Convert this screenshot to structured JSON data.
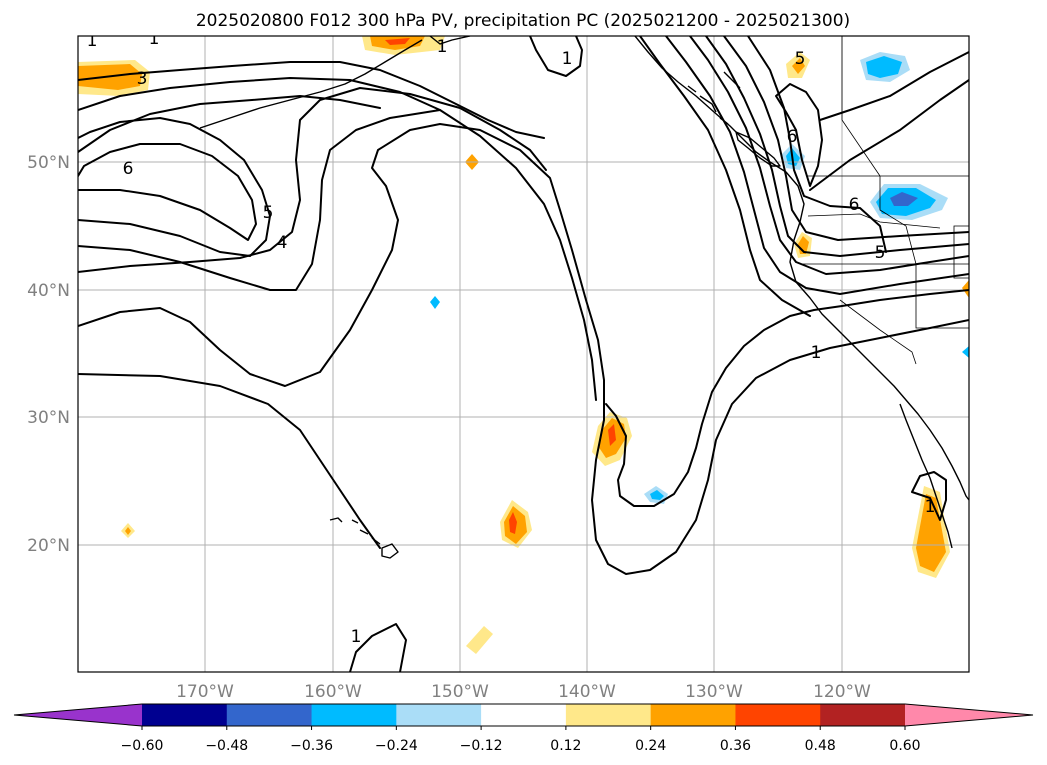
{
  "title": "2025020800 F012 300 hPa PV, precipitation PC (2025021200 - 2025021300)",
  "lat_labels": [
    "50°N",
    "40°N",
    "30°N",
    "20°N"
  ],
  "lon_labels": [
    "170°W",
    "160°W",
    "150°W",
    "140°W",
    "130°W",
    "120°W"
  ],
  "pv_contour_labels": [
    "1",
    "1",
    "3",
    "6",
    "5",
    "4",
    "1",
    "1",
    "5",
    "6",
    "6",
    "5",
    "1",
    "1",
    "1"
  ],
  "colorbar": {
    "ticks": [
      "−0.60",
      "−0.48",
      "−0.36",
      "−0.24",
      "−0.12",
      "0.12",
      "0.24",
      "0.36",
      "0.48",
      "0.60"
    ],
    "colors": [
      "#9933cc",
      "#000090",
      "#3366cc",
      "#00bbff",
      "#aaddf7",
      "#ffffff",
      "#ffe88a",
      "#ffa200",
      "#ff4400",
      "#b22222",
      "#ff88aa"
    ]
  },
  "colors": {
    "light_yellow": "#ffe88a",
    "orange": "#ffa200",
    "red_orange": "#ff4400",
    "cyan": "#00bbff",
    "light_blue": "#aaddf7",
    "medium_blue": "#3366cc",
    "grid": "#b0b0b0",
    "label_gray": "#808080"
  }
}
